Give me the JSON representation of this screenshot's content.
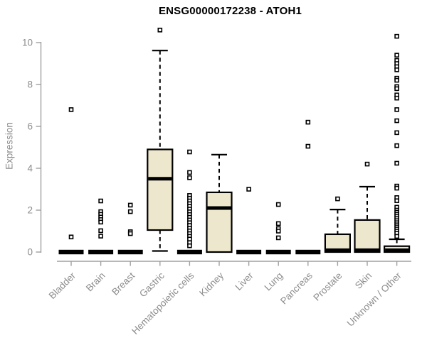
{
  "chart_data": {
    "type": "boxplot",
    "title": "ENSG00000172238 - ATOH1",
    "ylabel": "Expression",
    "xlabel": "",
    "ylim": [
      0,
      10.6
    ],
    "yticks": [
      0,
      2,
      4,
      6,
      8,
      10
    ],
    "grid": false,
    "legend": "none",
    "categories": [
      "Bladder",
      "Brain",
      "Breast",
      "Gastric",
      "Hematopoietic cells",
      "Kidney",
      "Liver",
      "Lung",
      "Pancreas",
      "Prostate",
      "Skin",
      "Unknown / Other"
    ],
    "boxes": [
      {
        "category": "Bladder",
        "min": 0,
        "q1": 0,
        "median": 0,
        "q3": 0,
        "max": 0,
        "outliers": [
          6.8,
          0.72
        ]
      },
      {
        "category": "Brain",
        "min": 0,
        "q1": 0,
        "median": 0,
        "q3": 0,
        "max": 0,
        "outliers": [
          2.44,
          1.93,
          1.8,
          1.67,
          1.55,
          1.43,
          1.02,
          0.76
        ]
      },
      {
        "category": "Breast",
        "min": 0,
        "q1": 0,
        "median": 0,
        "q3": 0,
        "max": 0,
        "outliers": [
          2.24,
          1.93,
          0.97,
          0.88
        ]
      },
      {
        "category": "Gastric",
        "min": 0.05,
        "q1": 1.05,
        "median": 3.5,
        "q3": 4.9,
        "max": 9.62,
        "outliers": [
          10.6
        ]
      },
      {
        "category": "Hematopoietic cells",
        "min": 0,
        "q1": 0,
        "median": 0,
        "q3": 0,
        "max": 0,
        "outliers": [
          4.78,
          3.8,
          3.55,
          2.7,
          2.57,
          2.44,
          2.31,
          2.18,
          2.05,
          1.92,
          1.79,
          1.66,
          1.53,
          1.4,
          1.27,
          1.14,
          1.01,
          0.88,
          0.75,
          0.62,
          0.45,
          0.3
        ]
      },
      {
        "category": "Kidney",
        "min": 0,
        "q1": 0,
        "median": 2.1,
        "q3": 2.85,
        "max": 4.65,
        "outliers": []
      },
      {
        "category": "Liver",
        "min": 0,
        "q1": 0,
        "median": 0,
        "q3": 0,
        "max": 0,
        "outliers": [
          3.0
        ]
      },
      {
        "category": "Lung",
        "min": 0,
        "q1": 0,
        "median": 0,
        "q3": 0,
        "max": 0,
        "outliers": [
          2.27,
          1.36,
          1.12,
          1.0,
          0.68
        ]
      },
      {
        "category": "Pancreas",
        "min": 0,
        "q1": 0,
        "median": 0,
        "q3": 0,
        "max": 0,
        "outliers": [
          6.2,
          5.05
        ]
      },
      {
        "category": "Prostate",
        "min": 0,
        "q1": 0,
        "median": 0,
        "q3": 0.85,
        "max": 2.03,
        "outliers": [
          2.54
        ]
      },
      {
        "category": "Skin",
        "min": 0,
        "q1": 0,
        "median": 0,
        "q3": 1.53,
        "max": 3.12,
        "outliers": [
          4.2
        ]
      },
      {
        "category": "Unknown / Other",
        "min": 0,
        "q1": 0,
        "median": 0,
        "q3": 0.28,
        "max": 0.61,
        "outliers": [
          10.3,
          9.4,
          9.15,
          9.0,
          8.85,
          8.7,
          8.3,
          8.2,
          7.9,
          7.8,
          7.5,
          7.35,
          6.8,
          6.27,
          5.7,
          5.08,
          4.24,
          3.15,
          3.05,
          2.6,
          2.45,
          2.14,
          2.0,
          1.9,
          1.8,
          1.7,
          1.6,
          1.5,
          1.4,
          1.3,
          1.2,
          1.1,
          1.0,
          0.9,
          0.75
        ]
      }
    ],
    "colors": {
      "box_fill": "#EDE8CD",
      "box_stroke": "#000000",
      "axis_line": "#A0A0A0",
      "axis_text": "#8C8C8C",
      "title_text": "#000000",
      "background": "#FFFFFF"
    }
  }
}
